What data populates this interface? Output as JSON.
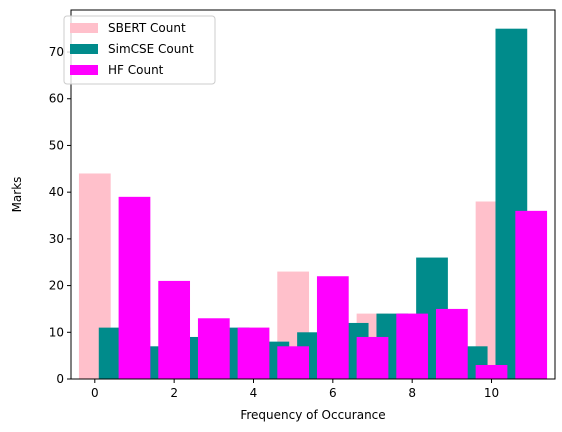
{
  "chart_data": {
    "type": "bar",
    "xlabel": "Frequency of Occurance",
    "ylabel": "Marks",
    "xlim": [
      -0.6,
      11.6
    ],
    "ylim": [
      0,
      79
    ],
    "xticks": [
      0,
      2,
      4,
      6,
      8,
      10
    ],
    "yticks": [
      0,
      10,
      20,
      30,
      40,
      50,
      60,
      70
    ],
    "grid": false,
    "legend_position": "top-left",
    "bar_width": 0.8,
    "series": [
      {
        "name": "SBERT Count",
        "color": "#ffc0cb",
        "x": [
          0,
          1,
          2,
          3,
          4,
          5,
          6,
          7,
          8,
          9,
          10
        ],
        "values": [
          44,
          11,
          7,
          9,
          11,
          23,
          10,
          14,
          14,
          15,
          38
        ]
      },
      {
        "name": "SimCSE Count",
        "color": "#008b8b",
        "x": [
          0.5,
          1.5,
          2.5,
          3.5,
          4.5,
          5.5,
          6.5,
          7.5,
          8.5,
          9.5,
          10.5
        ],
        "values": [
          11,
          7,
          9,
          11,
          8,
          10,
          12,
          14,
          26,
          7,
          75
        ]
      },
      {
        "name": "HF Count",
        "color": "#ff00ff",
        "x": [
          1,
          2,
          3,
          4,
          5,
          6,
          7,
          8,
          9,
          10,
          11
        ],
        "values": [
          39,
          21,
          13,
          11,
          7,
          22,
          9,
          14,
          15,
          3,
          36
        ]
      }
    ]
  }
}
